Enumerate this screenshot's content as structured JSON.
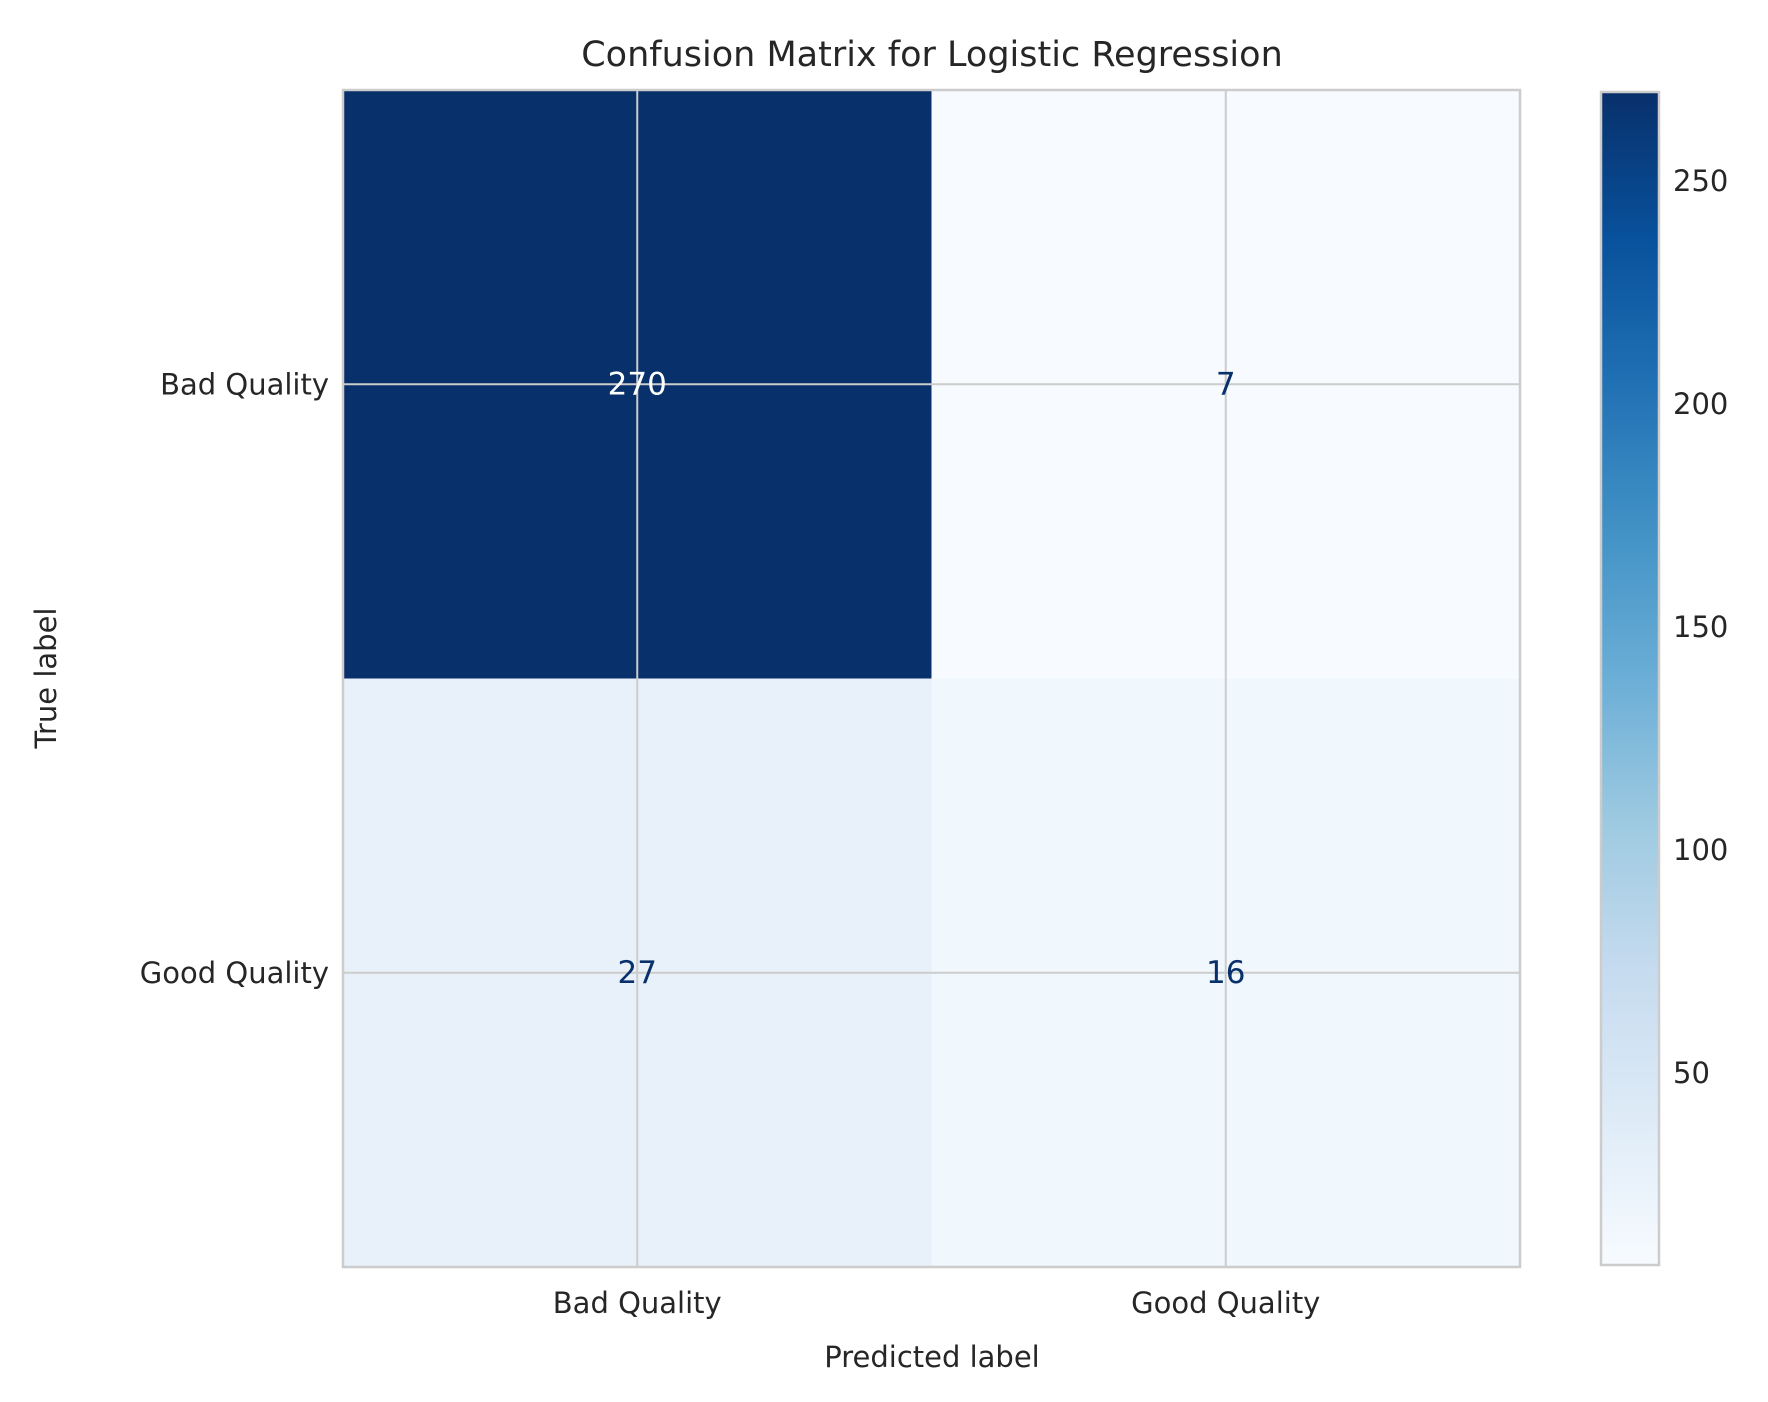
{
  "chart_data": {
    "type": "heatmap",
    "title": "Confusion Matrix for Logistic Regression",
    "xlabel": "Predicted label",
    "ylabel": "True label",
    "x_categories": [
      "Bad Quality",
      "Good Quality"
    ],
    "y_categories": [
      "Bad Quality",
      "Good Quality"
    ],
    "values": [
      [
        270,
        7
      ],
      [
        27,
        16
      ]
    ],
    "colormap": "Blues",
    "grid": true,
    "colorbar": {
      "location": "right",
      "range": [
        7,
        270
      ],
      "ticks": [
        50,
        100,
        150,
        200,
        250
      ]
    },
    "text_colors": {
      "on_dark": "#ffffff",
      "on_light": "#08306b"
    }
  }
}
